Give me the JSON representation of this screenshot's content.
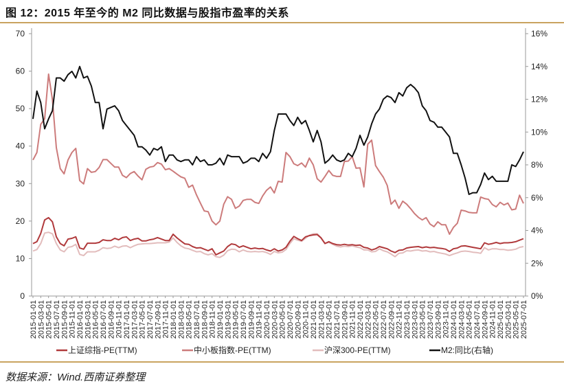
{
  "title": "图 12：2015 年至今的 M2 同比数据与股指市盈率的关系",
  "source": "数据来源：Wind.西南证券整理",
  "chart_data": {
    "type": "line",
    "title": "图 12：2015 年至今的 M2 同比数据与股指市盈率的关系",
    "x_start": "2015-01-01",
    "x_end": "2025-07-01",
    "x_frequency": "monthly",
    "x_tick_labels": [
      "2015-01-01",
      "2015-03-01",
      "2015-05-01",
      "2015-07-01",
      "2015-09-01",
      "2015-11-01",
      "2016-01-01",
      "2016-03-01",
      "2016-05-01",
      "2016-07-01",
      "2016-09-01",
      "2016-11-01",
      "2017-01-01",
      "2017-03-01",
      "2017-05-01",
      "2017-07-01",
      "2017-09-01",
      "2017-11-01",
      "2018-01-01",
      "2018-03-01",
      "2018-05-01",
      "2018-07-01",
      "2018-09-01",
      "2018-11-01",
      "2019-01-01",
      "2019-03-01",
      "2019-05-01",
      "2019-07-01",
      "2019-09-01",
      "2019-11-01",
      "2020-01-01",
      "2020-03-01",
      "2020-05-01",
      "2020-07-01",
      "2020-09-01",
      "2020-11-01",
      "2021-01-01",
      "2021-03-01",
      "2021-05-01",
      "2021-07-01",
      "2021-09-01",
      "2021-11-01",
      "2022-01-01",
      "2022-03-01",
      "2022-05-01",
      "2022-07-01",
      "2022-09-01",
      "2022-11-01",
      "2023-01-01",
      "2023-03-01",
      "2023-05-01",
      "2023-07-01",
      "2023-09-01",
      "2023-11-01",
      "2024-01-01",
      "2024-03-01",
      "2024-05-01",
      "2024-07-01",
      "2024-09-01",
      "2024-11-01",
      "2025-01-01",
      "2025-03-01",
      "2025-05-01",
      "2025-07-01"
    ],
    "y_left": {
      "range": [
        0,
        70
      ],
      "ticks": [
        "0",
        "10",
        "20",
        "30",
        "40",
        "50",
        "60",
        "70"
      ]
    },
    "y_right": {
      "range": [
        0,
        16
      ],
      "ticks": [
        "0%",
        "2%",
        "4%",
        "6%",
        "8%",
        "10%",
        "12%",
        "14%",
        "16%"
      ]
    },
    "grid": false,
    "legend": "bottom",
    "series": [
      {
        "name": "上证综指-PE(TTM)",
        "axis": "left",
        "color": "#b0393b",
        "values": [
          14,
          14.5,
          16.7,
          20.3,
          20.9,
          19.8,
          15.8,
          14,
          13.4,
          15.2,
          15.4,
          15.8,
          12.8,
          12.5,
          14.1,
          14.1,
          14.1,
          14.3,
          15,
          14.8,
          14.8,
          15.4,
          15,
          15.6,
          15.8,
          14.8,
          15.2,
          15.4,
          14.7,
          14.7,
          15,
          15.2,
          15.6,
          15.2,
          14.8,
          14.8,
          16.5,
          15.5,
          14.7,
          13.9,
          13.8,
          13.2,
          12.8,
          12.9,
          12.5,
          12.1,
          12.6,
          11.0,
          11.5,
          12,
          13.2,
          13.9,
          13.7,
          13,
          13.4,
          13,
          12.6,
          12.8,
          12.6,
          12.7,
          12.3,
          12,
          12.6,
          12,
          12.3,
          13,
          14.6,
          15.9,
          15.3,
          14.8,
          15.8,
          16.1,
          16.3,
          16.4,
          15.5,
          14,
          14.5,
          14,
          13.7,
          13.6,
          13.8,
          13.6,
          13.7,
          13.5,
          13.6,
          13,
          12.8,
          12.3,
          12.6,
          13.2,
          12.9,
          12.6,
          12,
          11.6,
          12.2,
          12.3,
          12.8,
          13,
          13.1,
          13.2,
          12.9,
          13.1,
          12.9,
          13,
          12.8,
          12.7,
          12.5,
          11.9,
          12.6,
          12.8,
          13.3,
          13.4,
          13.2,
          13,
          12.8,
          12.6,
          14.2,
          13.8,
          14,
          14.3,
          14,
          14.2,
          14.2,
          14.3,
          14.5,
          14.9,
          15.3
        ]
      },
      {
        "name": "中小板指数-PE(TTM)",
        "axis": "left",
        "color": "#cc7b7b",
        "values": [
          36.3,
          38.3,
          45.8,
          47.3,
          59.2,
          52.4,
          39.6,
          34,
          32.6,
          36.3,
          38.3,
          39.4,
          30.8,
          29.9,
          34,
          33,
          33.2,
          34.3,
          36.4,
          36.4,
          35.4,
          34.4,
          34.4,
          32.2,
          31.6,
          32.7,
          33.2,
          32,
          31,
          33.8,
          34.4,
          34.6,
          35.6,
          35.2,
          33.7,
          34,
          33.3,
          32.5,
          31.8,
          31.4,
          29,
          29.6,
          27,
          24.8,
          22.7,
          22.5,
          20,
          19,
          20,
          24.5,
          26.5,
          25.8,
          23.4,
          24,
          25.5,
          25.8,
          25.8,
          25,
          24.7,
          26.7,
          28.2,
          29.1,
          27.5,
          30.6,
          30.4,
          38.3,
          37.2,
          35.3,
          34.8,
          35.5,
          34.4,
          36.8,
          35,
          31.3,
          30.4,
          31.9,
          33.5,
          32.2,
          31.9,
          31.9,
          35.9,
          36,
          37.2,
          34.1,
          34.2,
          29.1,
          40.5,
          41.6,
          34.8,
          33.2,
          31.7,
          29.5,
          24.5,
          25.6,
          23.4,
          25.3,
          24.5,
          23.3,
          22,
          21,
          20.3,
          20.9,
          19.2,
          18.5,
          19.8,
          19,
          19,
          16.5,
          18.3,
          19.4,
          22.9,
          22.7,
          22.3,
          22.2,
          22.2,
          26.4,
          26,
          25.8,
          24.4,
          23.8,
          25,
          24.3,
          24.8,
          23,
          23.2,
          26.9,
          24.7
        ]
      },
      {
        "name": "沪深300-PE(TTM)",
        "axis": "left",
        "color": "#e2bcbc",
        "values": [
          12,
          12.4,
          14,
          16.8,
          17,
          16.6,
          14,
          12.3,
          11.8,
          13,
          13.2,
          13.8,
          11.1,
          10.8,
          11.8,
          11.8,
          11.8,
          12.2,
          12.9,
          12.7,
          12.8,
          13.3,
          12.9,
          13.3,
          13.4,
          12.9,
          13.4,
          13.8,
          13.9,
          14,
          14,
          14.1,
          14.2,
          14.2,
          14.2,
          14.4,
          15.5,
          14.3,
          13.4,
          12.8,
          12.6,
          12.2,
          11.8,
          11.9,
          11.3,
          11,
          11.3,
          10.5,
          10.3,
          10.9,
          12.1,
          12.5,
          12.4,
          11.8,
          12.3,
          11.9,
          11.8,
          11.9,
          11.8,
          11.9,
          11.6,
          11.1,
          11.9,
          11.5,
          11.7,
          12.4,
          14,
          15.3,
          14.9,
          14.6,
          15.4,
          16.2,
          16.6,
          16.6,
          15.6,
          14.1,
          14.3,
          13.8,
          13.3,
          13.1,
          13.3,
          13.2,
          13.4,
          13.1,
          12.9,
          12.3,
          12.3,
          11.8,
          11.9,
          12.6,
          12.1,
          11.8,
          11.2,
          10.5,
          11.4,
          11.5,
          12.1,
          12,
          12.2,
          12.3,
          12,
          12.1,
          11.8,
          11.9,
          11.6,
          11.4,
          11.2,
          10.8,
          11.2,
          11.5,
          11.9,
          12,
          11.9,
          11.7,
          11.6,
          11.4,
          12.9,
          12.3,
          12.6,
          12.6,
          12.4,
          12.4,
          12.2,
          12.3,
          12.5,
          13,
          13.2
        ]
      },
      {
        "name": "M2:同比(右轴)",
        "axis": "right",
        "color": "#111111",
        "values": [
          10.8,
          12.5,
          11.8,
          10.2,
          10.8,
          11.3,
          13.3,
          13.3,
          13.1,
          13.5,
          13.7,
          13.3,
          14,
          13.3,
          13.4,
          12.8,
          11.8,
          11.8,
          10.2,
          11.4,
          11.5,
          11.6,
          11.3,
          10.7,
          10.4,
          10.1,
          9.8,
          9.1,
          9.1,
          8.9,
          8.6,
          9,
          8.9,
          9.1,
          8.2,
          8.6,
          8.6,
          8.3,
          8.2,
          8.3,
          8.3,
          8,
          8.5,
          8.2,
          8.3,
          8,
          8,
          8.1,
          8.4,
          8,
          8.6,
          8.5,
          8.5,
          8.5,
          8.1,
          8.2,
          8.4,
          8.4,
          8.2,
          8.7,
          8.4,
          8.8,
          10.1,
          11.1,
          11.1,
          11.1,
          10.7,
          10.4,
          10.9,
          10.5,
          10.7,
          10.1,
          9.4,
          10.1,
          9.4,
          8.1,
          8.3,
          8.6,
          8.3,
          8.2,
          8.3,
          8.7,
          8.5,
          9,
          9.8,
          9.2,
          9.7,
          10.5,
          11.1,
          11.4,
          12,
          12.2,
          12.1,
          11.8,
          12.4,
          12.2,
          12.7,
          12.9,
          12.7,
          12.4,
          11.6,
          11.3,
          10.7,
          10.6,
          10.3,
          10.3,
          10,
          9.7,
          8.7,
          8.7,
          8,
          7.2,
          6.2,
          6.3,
          6.3,
          6.8,
          7.5,
          7.1,
          7.3,
          7,
          7,
          7,
          7,
          8,
          7.9,
          8.3,
          8.8
        ]
      }
    ]
  }
}
